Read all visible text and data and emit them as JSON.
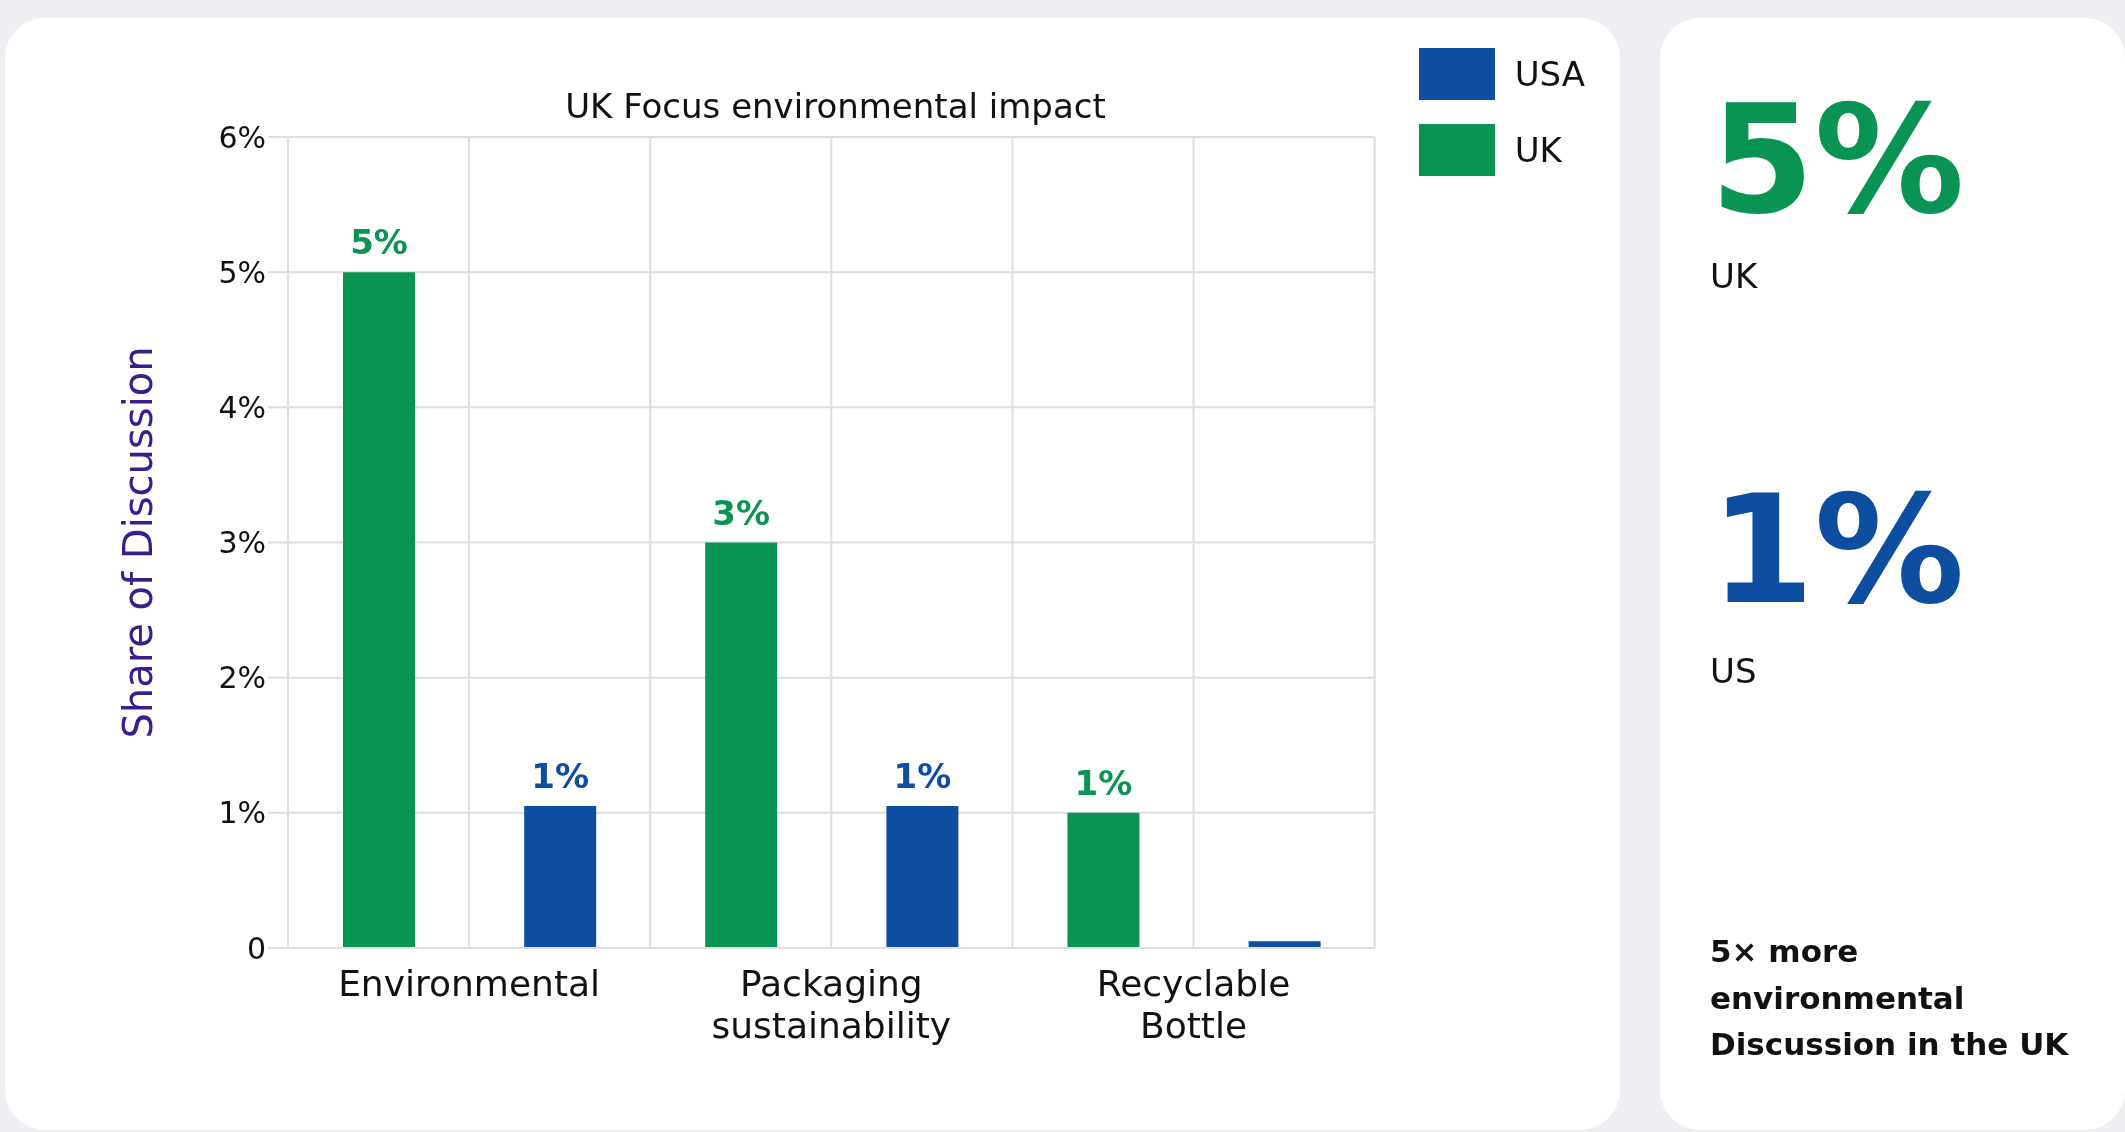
{
  "chart_data": [
    {
      "type": "bar",
      "title": "UK Focus environmental impact",
      "ylabel": "Share of Discussion",
      "categories": [
        "Environmental",
        "Packaging sustainability",
        "Recyclable Bottle"
      ],
      "series": [
        {
          "name": "UK",
          "color": "#099453",
          "values": [
            5,
            3,
            1
          ],
          "value_labels": [
            "5%",
            "3%",
            "1%"
          ]
        },
        {
          "name": "USA",
          "color": "#0d4ea0",
          "values": [
            1.05,
            1.05,
            0.05
          ],
          "value_labels": [
            "1%",
            "1%",
            null
          ]
        }
      ],
      "ylim": [
        0,
        6
      ],
      "yticks": [
        0,
        {
          "value": 1,
          "label": "1%"
        },
        {
          "value": 2,
          "label": "2%"
        },
        {
          "value": 3,
          "label": "3%"
        },
        {
          "value": 4,
          "label": "4%"
        },
        {
          "value": 5,
          "label": "5%"
        },
        {
          "value": 6,
          "label": "6%"
        }
      ],
      "grid": true,
      "legend": "top right"
    },
    {
      "type": "other",
      "annotations": [
        "5%",
        "UK",
        "1%",
        "US",
        "5× more environmental Discussion in the UK"
      ]
    }
  ]
}
